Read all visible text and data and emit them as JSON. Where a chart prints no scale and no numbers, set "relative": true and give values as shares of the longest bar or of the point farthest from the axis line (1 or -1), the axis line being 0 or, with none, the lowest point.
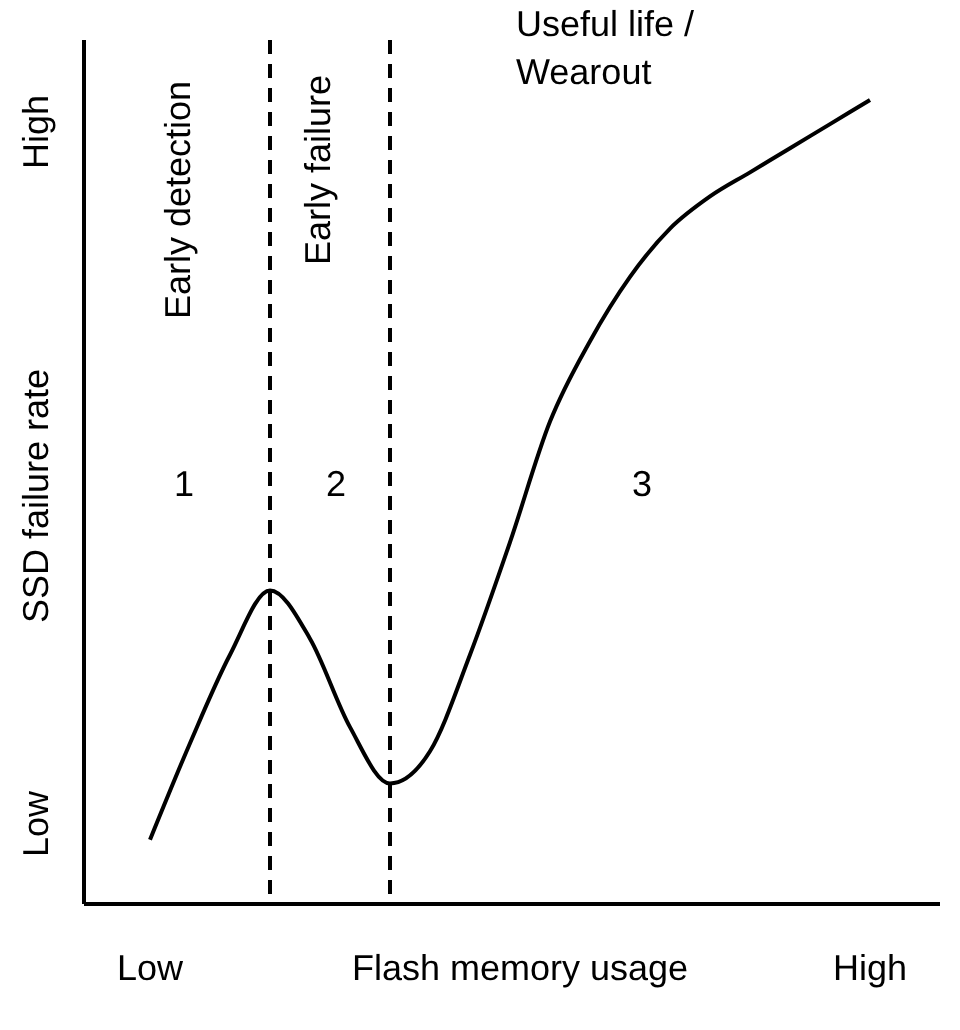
{
  "chart_data": {
    "type": "line",
    "relative": true,
    "xlabel": "Flash memory usage",
    "ylabel": "SSD failure rate",
    "categories": [
      "Low",
      null,
      null,
      null,
      null,
      null,
      null,
      null,
      null,
      null,
      null,
      null,
      null,
      null,
      null,
      null,
      null,
      null,
      "High"
    ],
    "series": [
      {
        "color": "#000000",
        "values": [
          0.08,
          0.2,
          0.31,
          0.39,
          0.33,
          0.22,
          0.15,
          0.19,
          0.31,
          0.45,
          0.6,
          0.7,
          0.78,
          0.84,
          0.88,
          0.91,
          0.94,
          0.97,
          1.0
        ]
      }
    ],
    "annotations": [
      "Early detection",
      "Early failure",
      "Useful life /\nWearout",
      "1",
      "2",
      "3",
      "Low",
      "High"
    ],
    "line_style": "solid"
  }
}
